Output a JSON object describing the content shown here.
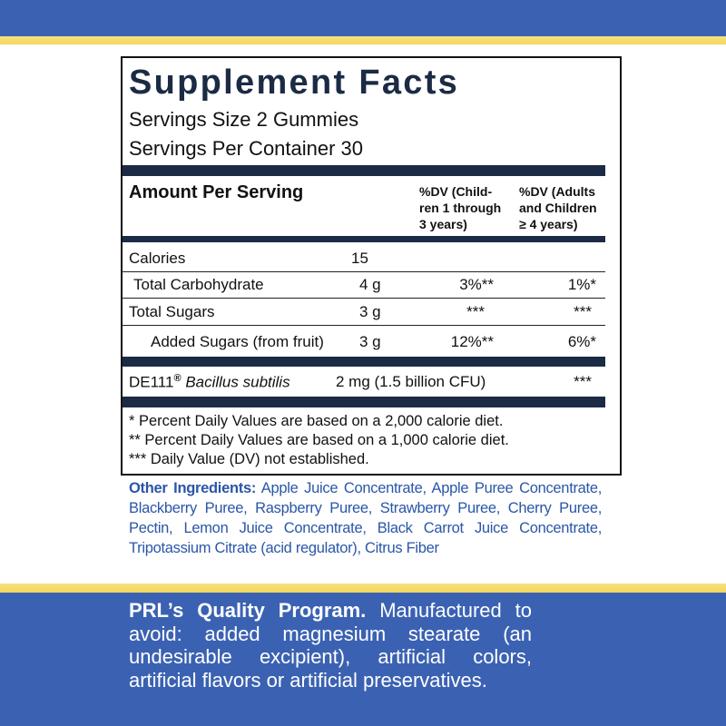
{
  "header": {
    "title": "Supplement Facts",
    "serving_size": "Servings Size 2 Gummies",
    "servings_per_container": "Servings Per Container 30"
  },
  "table": {
    "columns": {
      "amount_per_serving": "Amount Per Serving",
      "dv_children": [
        "%DV (Child-",
        "ren 1 through",
        "3 years)"
      ],
      "dv_adults": [
        "%DV (Adults",
        "and Children",
        "≥ 4 years)"
      ]
    },
    "rows": [
      {
        "name": "Calories",
        "amount": "15"
      },
      {
        "name": "Total Carbohydrate",
        "amount": "4 g",
        "dv_children": "3%**",
        "dv_adults": "1%*"
      },
      {
        "name": "Total Sugars",
        "amount": "3 g",
        "dv_children": "***",
        "dv_adults": "***"
      },
      {
        "name": "Added Sugars (from fruit)",
        "amount": "3 g",
        "dv_children": "12%**",
        "dv_adults": "6%*"
      }
    ],
    "probiotic": {
      "name": "DE111",
      "mark": "®",
      "species": "Bacillus subtilis",
      "amount": "2 mg (1.5 billion CFU)",
      "dv_adults": "***"
    },
    "footnotes": [
      "* Percent Daily Values are based on a 2,000 calorie diet.",
      "** Percent Daily Values are based on a 1,000 calorie diet.",
      "*** Daily Value (DV) not established."
    ]
  },
  "other_ingredients": {
    "label": "Other Ingredients:",
    "text": "Apple Juice Concentrate, Apple Puree Concentrate, Blackberry Puree, Raspberry Puree, Strawberry Puree, Cherry Puree, Pectin, Lemon Juice Concentrate, Black Carrot Juice Concentrate, Tripotassium Citrate (acid regulator), Citrus Fiber"
  },
  "quality_program": {
    "heading": "PRL’s Quality Program.",
    "text": "Manufactured to avoid: added magnesium stearate (an undesirable excipient), artificial colors, artificial flavors or artificial preservatives."
  }
}
